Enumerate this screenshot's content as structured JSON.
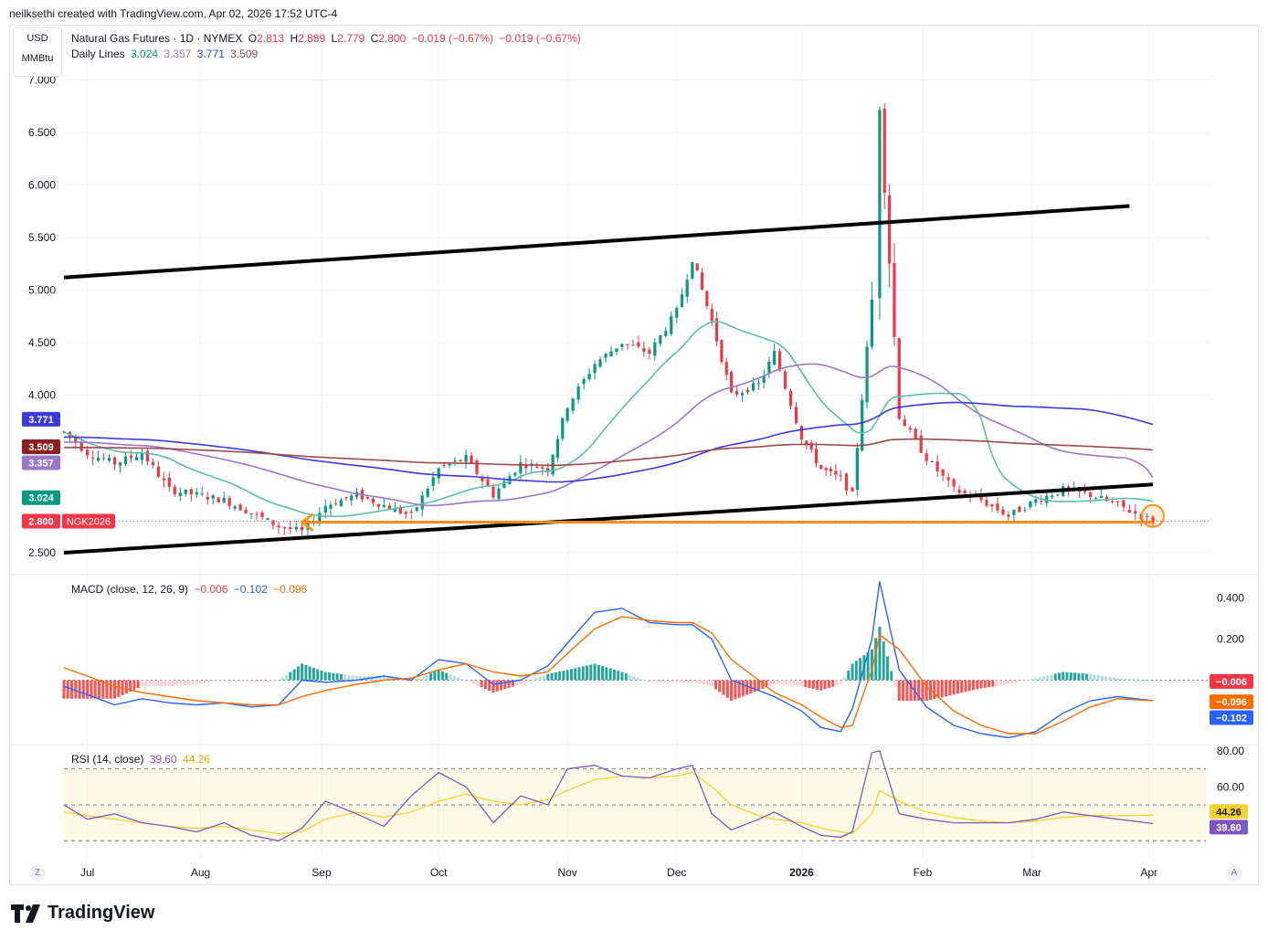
{
  "header": {
    "credit": "neilksethi created with TradingView.com, Apr 02, 2026 17:52 UTC-4"
  },
  "currency": {
    "ccy": "USD",
    "unit": "MMBtu"
  },
  "legend": {
    "symbol": "Natural Gas Futures · 1D · NYMEX",
    "o_label": "O",
    "o": "2.813",
    "h_label": "H",
    "h": "2.889",
    "l_label": "L",
    "l": "2.779",
    "c_label": "C",
    "c": "2.800",
    "chg": "−0.019 (−0.67%)",
    "chg2": "−0.019 (−0.67%)",
    "lines_label": "Daily Lines",
    "line1": "3.024",
    "line2": "3.357",
    "line3": "3.771",
    "line4": "3.509"
  },
  "colors": {
    "up": "#089981",
    "down": "#f23645",
    "ma20": "#5cbfa9",
    "ma50": "#9b79c9",
    "ma100": "#3b3bd9",
    "ma200": "#9c4a4a",
    "trend": "#000000",
    "highlight": "#f7931a",
    "macd": "#2962ff",
    "signal": "#ff6d00",
    "rsi": "#7e57c2",
    "rsi_ma": "#f5d230"
  },
  "chart_data": [
    {
      "type": "candlestick",
      "title": "Natural Gas Futures · 1D · NYMEX",
      "ylabel": "USD / MMBtu",
      "y_ticks": [
        "7.000",
        "6.500",
        "6.000",
        "5.500",
        "5.000",
        "4.500",
        "4.000",
        "2.500"
      ],
      "y_range": [
        2.3,
        7.5
      ],
      "x_ticks": [
        "Jul",
        "Aug",
        "Sep",
        "Oct",
        "Nov",
        "Dec",
        "2026",
        "Feb",
        "Mar",
        "Apr"
      ],
      "x_range": [
        "2025-06-27",
        "2026-04-02"
      ],
      "last": {
        "open": 2.813,
        "high": 2.889,
        "low": 2.779,
        "close": 2.8
      },
      "price_labels": [
        {
          "value": "3.771",
          "color": "#3b3bd9"
        },
        {
          "value": "3.509",
          "color": "#8b1e1e"
        },
        {
          "value": "3.357",
          "color": "#9b79c9"
        },
        {
          "value": "3.024",
          "color": "#089981"
        },
        {
          "value": "2.800",
          "color": "#f23645",
          "tag": "NGK2026"
        }
      ],
      "closes": [
        [
          "2025-06-27",
          3.65
        ],
        [
          "2025-07-03",
          3.45
        ],
        [
          "2025-07-10",
          3.35
        ],
        [
          "2025-07-17",
          3.45
        ],
        [
          "2025-07-24",
          3.1
        ],
        [
          "2025-07-31",
          3.05
        ],
        [
          "2025-08-07",
          3.0
        ],
        [
          "2025-08-14",
          2.88
        ],
        [
          "2025-08-21",
          2.75
        ],
        [
          "2025-08-27",
          2.7
        ],
        [
          "2025-09-02",
          2.95
        ],
        [
          "2025-09-10",
          3.05
        ],
        [
          "2025-09-17",
          2.95
        ],
        [
          "2025-09-24",
          2.85
        ],
        [
          "2025-10-01",
          3.3
        ],
        [
          "2025-10-08",
          3.4
        ],
        [
          "2025-10-15",
          3.05
        ],
        [
          "2025-10-22",
          3.35
        ],
        [
          "2025-10-29",
          3.3
        ],
        [
          "2025-11-03",
          3.9
        ],
        [
          "2025-11-10",
          4.3
        ],
        [
          "2025-11-17",
          4.5
        ],
        [
          "2025-11-24",
          4.4
        ],
        [
          "2025-12-01",
          4.8
        ],
        [
          "2025-12-05",
          5.3
        ],
        [
          "2025-12-10",
          4.7
        ],
        [
          "2025-12-15",
          4.0
        ],
        [
          "2025-12-22",
          4.1
        ],
        [
          "2025-12-26",
          4.4
        ],
        [
          "2026-01-02",
          3.6
        ],
        [
          "2026-01-07",
          3.3
        ],
        [
          "2026-01-12",
          3.2
        ],
        [
          "2026-01-15",
          3.05
        ],
        [
          "2026-01-20",
          4.9
        ],
        [
          "2026-01-22",
          6.8
        ],
        [
          "2026-01-27",
          3.8
        ],
        [
          "2026-02-03",
          3.4
        ],
        [
          "2026-02-10",
          3.1
        ],
        [
          "2026-02-17",
          3.0
        ],
        [
          "2026-02-24",
          2.85
        ],
        [
          "2026-03-03",
          3.0
        ],
        [
          "2026-03-10",
          3.1
        ],
        [
          "2026-03-17",
          3.05
        ],
        [
          "2026-03-24",
          2.95
        ],
        [
          "2026-04-02",
          2.8
        ]
      ],
      "annotations": [
        {
          "type": "trendline",
          "from": [
            "2025-06-27",
            5.12
          ],
          "to": [
            "2026-03-27",
            5.8
          ]
        },
        {
          "type": "trendline",
          "from": [
            "2025-06-27",
            2.5
          ],
          "to": [
            "2026-04-02",
            3.15
          ]
        },
        {
          "type": "horizontal-arrow",
          "value": 2.79,
          "from": "2026-04-02",
          "to": "2025-08-27"
        },
        {
          "type": "circle",
          "at": [
            "2026-04-02",
            2.85
          ]
        }
      ]
    },
    {
      "type": "line",
      "title": "MACD (close, 12, 26, 9)",
      "legend_values": [
        "−0.006",
        "−0.102",
        "−0.096"
      ],
      "y_ticks": [
        "0.400",
        "0.200"
      ],
      "y_range": [
        -0.3,
        0.5
      ],
      "series": [
        {
          "name": "MACD",
          "values": [
            -0.03,
            -0.07,
            -0.12,
            -0.09,
            -0.11,
            -0.12,
            -0.11,
            -0.13,
            -0.12,
            0.0,
            -0.01,
            0.0,
            0.02,
            0.0,
            0.1,
            0.08,
            -0.02,
            0.0,
            0.07,
            0.18,
            0.33,
            0.35,
            0.28,
            0.27,
            0.27,
            0.2,
            0.0,
            -0.05,
            -0.08,
            -0.15,
            -0.23,
            -0.25,
            -0.14,
            0.2,
            0.48,
            0.05,
            -0.13,
            -0.22,
            -0.26,
            -0.28,
            -0.25,
            -0.16,
            -0.1,
            -0.08,
            -0.1
          ]
        },
        {
          "name": "Signal",
          "values": [
            0.06,
            0.02,
            -0.03,
            -0.06,
            -0.08,
            -0.1,
            -0.11,
            -0.12,
            -0.12,
            -0.08,
            -0.05,
            -0.02,
            0.0,
            0.01,
            0.05,
            0.08,
            0.04,
            0.02,
            0.04,
            0.13,
            0.25,
            0.31,
            0.29,
            0.28,
            0.28,
            0.23,
            0.1,
            0.0,
            -0.06,
            -0.12,
            -0.18,
            -0.23,
            -0.22,
            0.05,
            0.22,
            0.15,
            -0.03,
            -0.15,
            -0.22,
            -0.26,
            -0.26,
            -0.2,
            -0.13,
            -0.09,
            -0.1
          ]
        }
      ]
    },
    {
      "type": "line",
      "title": "RSI (14, close)",
      "legend_values": [
        "39.60",
        "44.26"
      ],
      "y_ticks": [
        "80.00",
        "60.00"
      ],
      "y_range": [
        20,
        82
      ],
      "series": [
        {
          "name": "RSI",
          "values": [
            50,
            42,
            45,
            40,
            38,
            35,
            40,
            33,
            30,
            37,
            52,
            45,
            38,
            55,
            68,
            60,
            40,
            55,
            50,
            70,
            72,
            66,
            65,
            70,
            72,
            45,
            36,
            42,
            46,
            38,
            33,
            32,
            35,
            79,
            80,
            45,
            42,
            40,
            40,
            40,
            42,
            46,
            44,
            42,
            39.6
          ]
        },
        {
          "name": "RSI MA",
          "values": [
            46,
            44,
            42,
            40,
            38,
            37,
            38,
            36,
            34,
            35,
            42,
            46,
            43,
            46,
            52,
            56,
            52,
            50,
            53,
            58,
            64,
            66,
            65,
            66,
            68,
            60,
            50,
            44,
            42,
            40,
            37,
            35,
            34,
            45,
            58,
            52,
            46,
            43,
            41,
            40,
            41,
            43,
            44,
            44,
            44.26
          ]
        }
      ]
    }
  ]
}
